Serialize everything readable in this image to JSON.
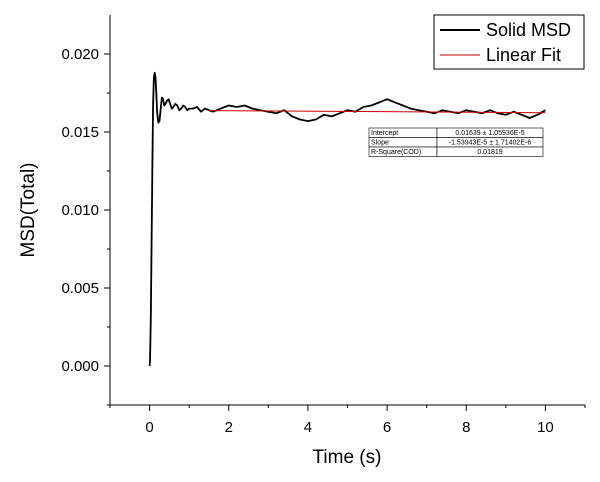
{
  "chart_data": {
    "type": "line",
    "xlabel": "Time (s)",
    "ylabel": "MSD(Total)",
    "xlim": [
      -1,
      11
    ],
    "ylim": [
      -0.0025,
      0.0225
    ],
    "x_ticks": [
      0,
      2,
      4,
      6,
      8,
      10
    ],
    "x_tick_labels": [
      "0",
      "2",
      "4",
      "6",
      "8",
      "10"
    ],
    "y_ticks": [
      0.0,
      0.005,
      0.01,
      0.015,
      0.02
    ],
    "y_tick_labels": [
      "0.000",
      "0.005",
      "0.010",
      "0.015",
      "0.020"
    ],
    "grid": false,
    "legend_position": "top-right",
    "legend": [
      "Solid MSD",
      "Linear Fit"
    ],
    "series": [
      {
        "name": "Solid MSD",
        "color": "#000000",
        "x": [
          0.0,
          0.01,
          0.03,
          0.05,
          0.07,
          0.09,
          0.11,
          0.13,
          0.15,
          0.17,
          0.19,
          0.22,
          0.25,
          0.28,
          0.31,
          0.34,
          0.37,
          0.4,
          0.44,
          0.48,
          0.52,
          0.56,
          0.6,
          0.65,
          0.7,
          0.75,
          0.8,
          0.85,
          0.9,
          0.95,
          1.0,
          1.1,
          1.2,
          1.3,
          1.4,
          1.5,
          1.6,
          1.7,
          1.8,
          1.9,
          2.0,
          2.2,
          2.4,
          2.6,
          2.8,
          3.0,
          3.2,
          3.4,
          3.6,
          3.8,
          4.0,
          4.2,
          4.4,
          4.6,
          4.8,
          5.0,
          5.2,
          5.4,
          5.6,
          5.8,
          6.0,
          6.2,
          6.4,
          6.6,
          6.8,
          7.0,
          7.2,
          7.4,
          7.6,
          7.8,
          8.0,
          8.2,
          8.4,
          8.6,
          8.8,
          9.0,
          9.2,
          9.4,
          9.6,
          9.8,
          10.0
        ],
        "y": [
          0.0,
          0.0003,
          0.003,
          0.008,
          0.013,
          0.0168,
          0.0185,
          0.0188,
          0.0185,
          0.0175,
          0.0163,
          0.0156,
          0.0157,
          0.0165,
          0.0172,
          0.0171,
          0.0167,
          0.0168,
          0.017,
          0.0171,
          0.0168,
          0.0165,
          0.0166,
          0.0168,
          0.0167,
          0.0164,
          0.0165,
          0.0167,
          0.0166,
          0.0164,
          0.0165,
          0.0165,
          0.0166,
          0.0163,
          0.0165,
          0.0164,
          0.0163,
          0.0164,
          0.0165,
          0.0166,
          0.0167,
          0.0166,
          0.0167,
          0.0165,
          0.0164,
          0.0163,
          0.0162,
          0.0164,
          0.016,
          0.0158,
          0.0157,
          0.0158,
          0.0161,
          0.016,
          0.0162,
          0.0164,
          0.0163,
          0.0166,
          0.0167,
          0.0169,
          0.0171,
          0.0169,
          0.0167,
          0.0165,
          0.0164,
          0.0163,
          0.0162,
          0.0164,
          0.0163,
          0.0162,
          0.0164,
          0.0163,
          0.0162,
          0.0164,
          0.0162,
          0.0161,
          0.0163,
          0.0161,
          0.0159,
          0.0161,
          0.0164
        ]
      },
      {
        "name": "Linear Fit",
        "color": "#cc0000",
        "x": [
          1.5,
          10.0
        ],
        "y": [
          0.01637,
          0.01624
        ]
      }
    ],
    "fit_table": [
      {
        "label": "Intercept",
        "value": "0.01639 ± 1.05936E-5"
      },
      {
        "label": "Slope",
        "value": "-1.53943E-5 ± 1.71402E-6"
      },
      {
        "label": "R-Square(COD)",
        "value": "0.01819"
      }
    ]
  }
}
